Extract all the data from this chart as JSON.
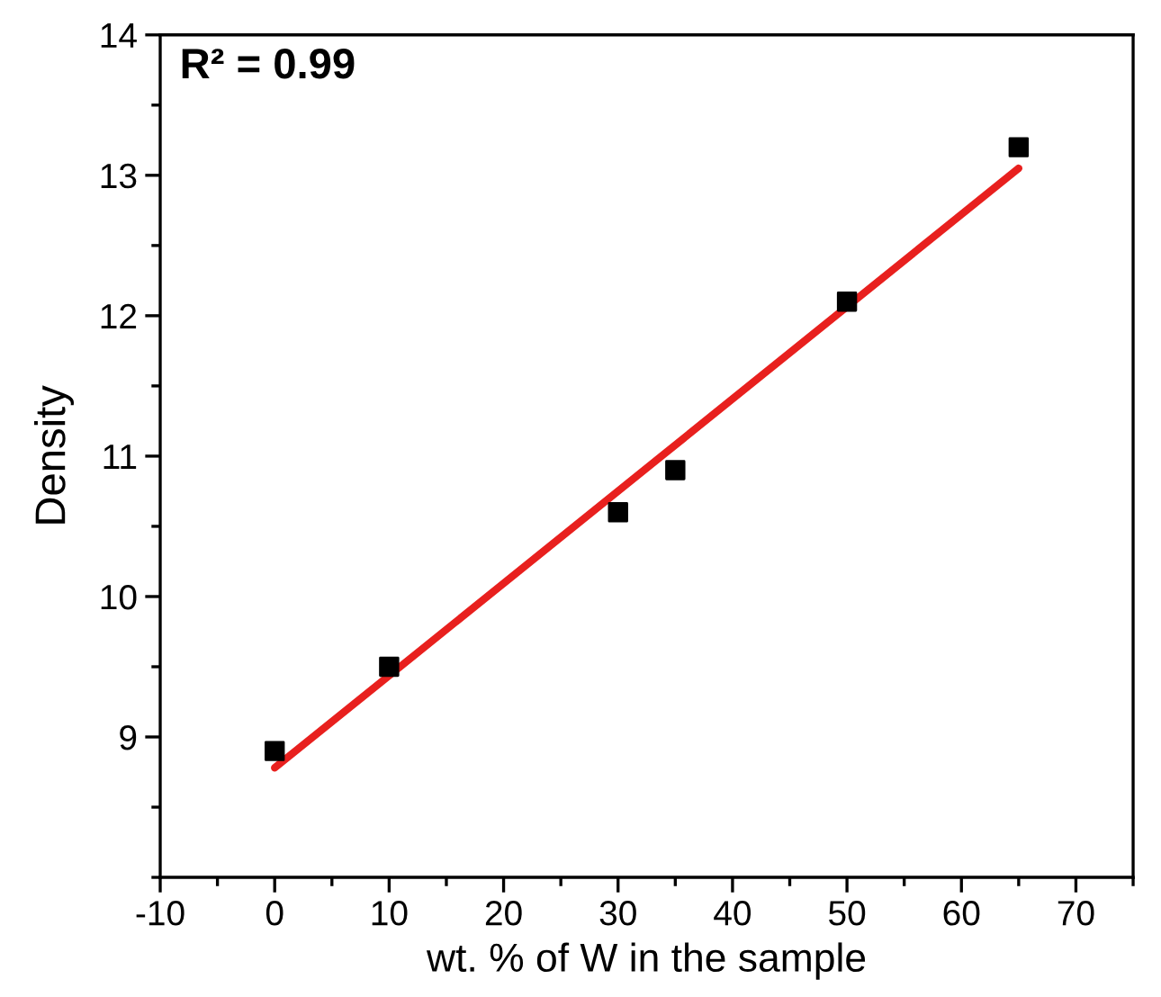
{
  "chart_data": {
    "type": "scatter",
    "xlabel": "wt. % of W in the sample",
    "ylabel": "Density",
    "annotations": [
      "R² = 0.99"
    ],
    "series": [
      {
        "color": "#000000",
        "marker": "square",
        "x": [
          0,
          10,
          30,
          35,
          50,
          65
        ],
        "values": [
          8.9,
          9.5,
          10.6,
          10.9,
          12.1,
          13.2
        ]
      },
      {
        "type": "line",
        "color": "#e8201e",
        "marker": "none",
        "x": [
          0,
          65
        ],
        "values": [
          8.78,
          13.05
        ]
      }
    ],
    "xlim": [
      -10,
      75
    ],
    "ylim": [
      8,
      14
    ],
    "xticks": [
      -10,
      0,
      10,
      20,
      30,
      40,
      50,
      60,
      70
    ],
    "yticks": [
      9,
      10,
      11,
      12,
      13,
      14
    ],
    "grid": false,
    "legend": false
  }
}
